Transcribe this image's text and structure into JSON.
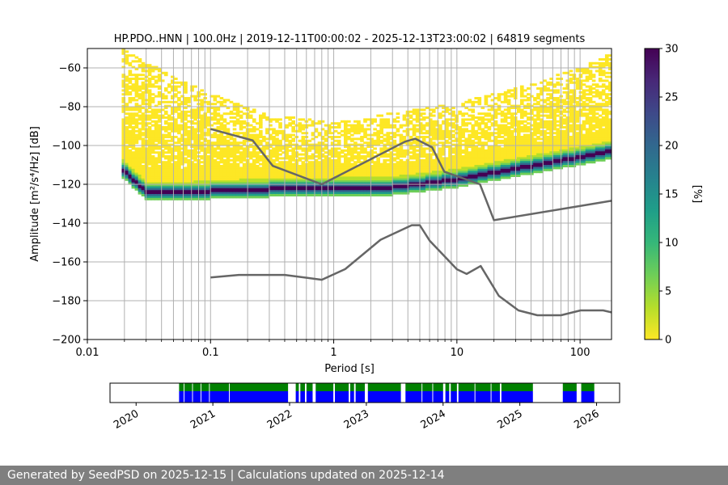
{
  "chart_data": [
    {
      "type": "heatmap",
      "title": "HP.PDO..HNN | 100.0Hz | 2019-12-11T00:00:02 - 2025-12-13T23:00:02 | 64819 segments",
      "xlabel": "Period [s]",
      "ylabel": "Amplitude [m²/s⁴/Hz] [dB]",
      "x_scale": "log",
      "xlim": [
        0.01,
        180
      ],
      "ylim": [
        -200,
        -50
      ],
      "x_ticks": [
        {
          "value": 0.01,
          "label": "0.01"
        },
        {
          "value": 0.1,
          "label": "0.1"
        },
        {
          "value": 1,
          "label": "1"
        },
        {
          "value": 10,
          "label": "10"
        },
        {
          "value": 100,
          "label": "100"
        }
      ],
      "y_ticks": [
        {
          "value": -60,
          "label": "−60"
        },
        {
          "value": -80,
          "label": "−80"
        },
        {
          "value": -100,
          "label": "−100"
        },
        {
          "value": -120,
          "label": "−120"
        },
        {
          "value": -140,
          "label": "−140"
        },
        {
          "value": -160,
          "label": "−160"
        },
        {
          "value": -180,
          "label": "−180"
        },
        {
          "value": -200,
          "label": "−200"
        }
      ],
      "colorbar": {
        "label": "[%]",
        "range": [
          0,
          30
        ],
        "ticks": [
          {
            "value": 0,
            "label": "0"
          },
          {
            "value": 5,
            "label": "5"
          },
          {
            "value": 10,
            "label": "10"
          },
          {
            "value": 15,
            "label": "15"
          },
          {
            "value": 20,
            "label": "20"
          },
          {
            "value": 25,
            "label": "25"
          },
          {
            "value": 30,
            "label": "30"
          }
        ],
        "colors": [
          "#fde725",
          "#b5de2b",
          "#6ece58",
          "#35b779",
          "#1f9e89",
          "#26828e",
          "#31688e",
          "#3e4989",
          "#482878",
          "#440154"
        ]
      },
      "mode_curve": [
        [
          0.019,
          -112
        ],
        [
          0.022,
          -116
        ],
        [
          0.03,
          -124
        ],
        [
          0.05,
          -124.5
        ],
        [
          0.1,
          -123.5
        ],
        [
          0.3,
          -122.5
        ],
        [
          1,
          -122
        ],
        [
          3,
          -121.5
        ],
        [
          10,
          -117.5
        ],
        [
          30,
          -112
        ],
        [
          100,
          -106
        ],
        [
          180,
          -103
        ]
      ],
      "upper_envelope": [
        [
          0.019,
          -50
        ],
        [
          0.03,
          -57
        ],
        [
          0.1,
          -73
        ],
        [
          0.3,
          -84
        ],
        [
          1,
          -88
        ],
        [
          3,
          -83
        ],
        [
          10,
          -78
        ],
        [
          30,
          -70
        ],
        [
          100,
          -60
        ],
        [
          180,
          -52
        ]
      ],
      "nhnm": [
        [
          0.1,
          -91.5
        ],
        [
          0.22,
          -97.4
        ],
        [
          0.32,
          -110.5
        ],
        [
          0.8,
          -120
        ],
        [
          3.8,
          -98
        ],
        [
          4.6,
          -96.5
        ],
        [
          6.3,
          -101
        ],
        [
          7.9,
          -113.5
        ],
        [
          15.4,
          -120
        ],
        [
          20,
          -138.5
        ],
        [
          180,
          -128.5
        ]
      ],
      "nlnm": [
        [
          0.1,
          -168
        ],
        [
          0.17,
          -166.7
        ],
        [
          0.4,
          -166.7
        ],
        [
          0.8,
          -169.2
        ],
        [
          1.24,
          -163.7
        ],
        [
          2.4,
          -148.6
        ],
        [
          4.3,
          -141.1
        ],
        [
          5,
          -141.1
        ],
        [
          6,
          -149
        ],
        [
          10,
          -163.8
        ],
        [
          12,
          -166.2
        ],
        [
          15.6,
          -162.1
        ],
        [
          21.9,
          -177.5
        ],
        [
          31.6,
          -185
        ],
        [
          45,
          -187.5
        ],
        [
          70,
          -187.5
        ],
        [
          101,
          -185
        ],
        [
          154,
          -185
        ],
        [
          180,
          -186
        ]
      ]
    },
    {
      "type": "timeline",
      "x_ticks": [
        {
          "value": 2020,
          "label": "2020"
        },
        {
          "value": 2021,
          "label": "2021"
        },
        {
          "value": 2022,
          "label": "2022"
        },
        {
          "value": 2023,
          "label": "2023"
        },
        {
          "value": 2024,
          "label": "2024"
        },
        {
          "value": 2025,
          "label": "2025"
        },
        {
          "value": 2026,
          "label": "2026"
        }
      ],
      "xlim": [
        2019.66,
        2026.3
      ],
      "green_color": "#008000",
      "blue_color": "#0000ff",
      "data_ranges": [
        [
          2020.56,
          2020.62
        ],
        [
          2020.63,
          2020.73
        ],
        [
          2020.74,
          2020.84
        ],
        [
          2020.85,
          2020.95
        ],
        [
          2020.96,
          2021.21
        ],
        [
          2021.22,
          2021.98
        ],
        [
          2022.08,
          2022.12
        ],
        [
          2022.14,
          2022.2
        ],
        [
          2022.22,
          2022.3
        ],
        [
          2022.34,
          2022.57
        ],
        [
          2022.59,
          2022.77
        ],
        [
          2022.79,
          2022.84
        ],
        [
          2022.86,
          2022.98
        ],
        [
          2023.02,
          2023.45
        ],
        [
          2023.51,
          2023.72
        ],
        [
          2023.73,
          2023.86
        ],
        [
          2023.87,
          2024.0
        ],
        [
          2024.03,
          2024.08
        ],
        [
          2024.1,
          2024.18
        ],
        [
          2024.2,
          2024.41
        ],
        [
          2024.42,
          2024.62
        ],
        [
          2024.63,
          2024.74
        ],
        [
          2024.76,
          2025.17
        ],
        [
          2025.56,
          2025.74
        ],
        [
          2025.8,
          2025.97
        ]
      ]
    }
  ],
  "footer": {
    "text": "Generated by SeedPSD on 2025-12-15 | Calculations updated on 2025-12-14"
  }
}
